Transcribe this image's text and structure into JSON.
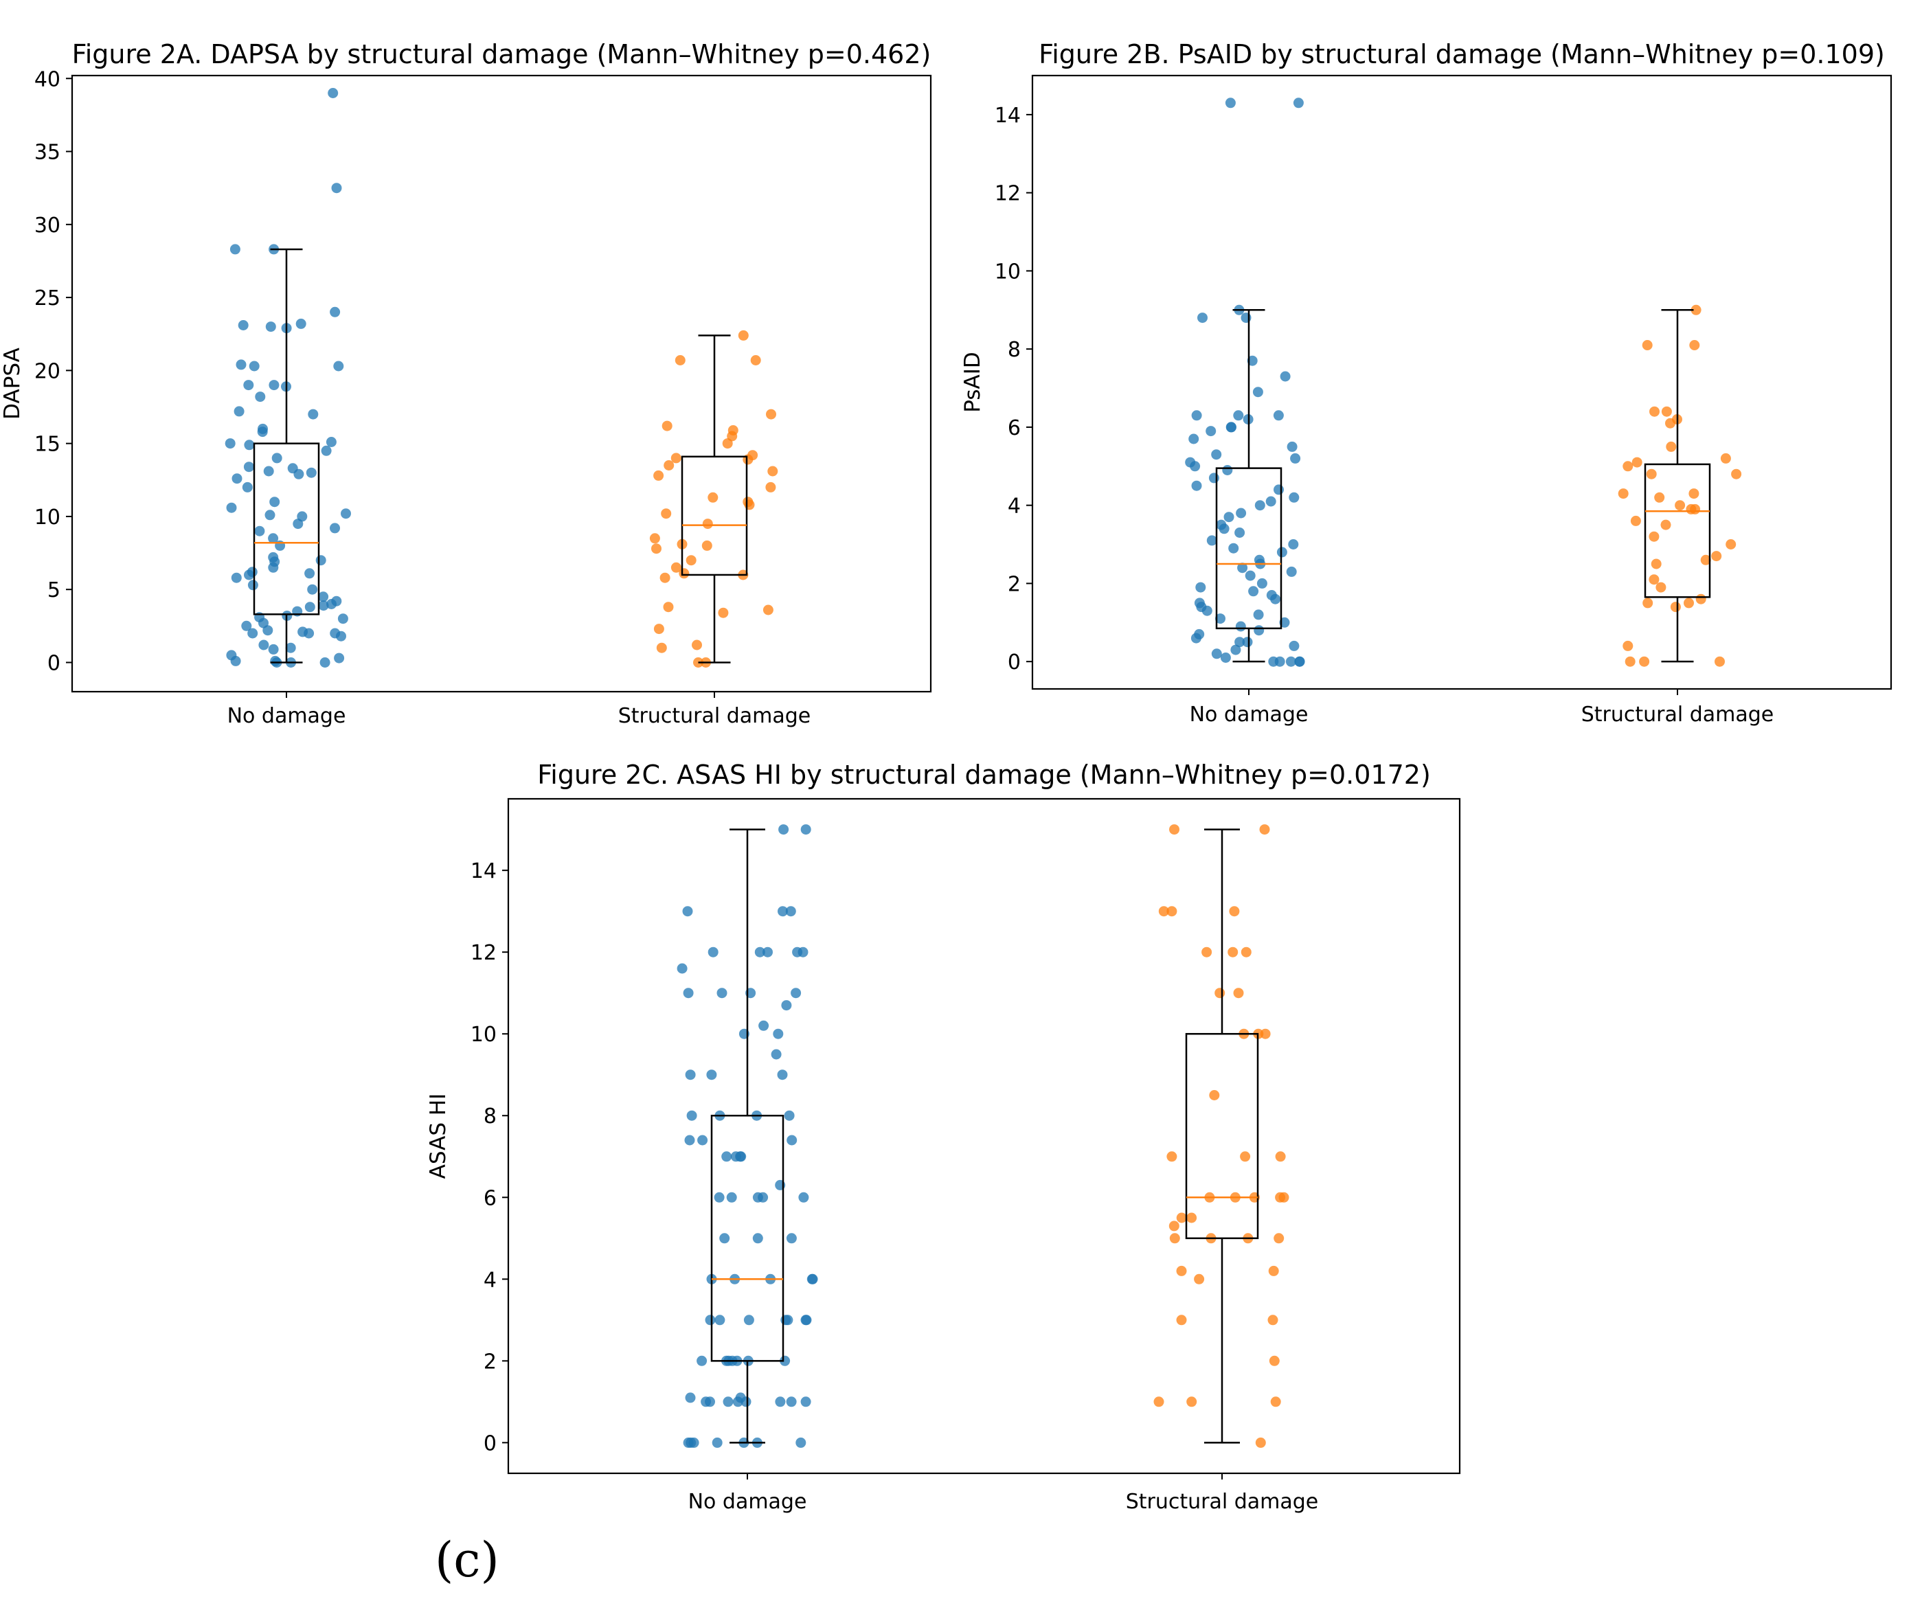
{
  "panel_label": "(c)",
  "colors": {
    "no_damage": "#1f77b4",
    "structural_damage": "#ff7f0e",
    "median": "#ff7f0e",
    "box": "#000000"
  },
  "chart_data": [
    {
      "id": "2A",
      "type": "box",
      "title": "Figure 2A. DAPSA by structural damage (Mann–Whitney p=0.462)",
      "ylabel": "DAPSA",
      "xlabel": "",
      "categories": [
        "No damage",
        "Structural damage"
      ],
      "ylim": [
        -2,
        40.2
      ],
      "yticks": [
        0,
        5,
        10,
        15,
        20,
        25,
        30,
        35,
        40
      ],
      "legend": "none",
      "grid": false,
      "boxes": [
        {
          "category": "No damage",
          "q1": 3.3,
          "median": 8.2,
          "q3": 15.0,
          "whisker_low": 0,
          "whisker_high": 28.3
        },
        {
          "category": "Structural damage",
          "q1": 6.0,
          "median": 9.4,
          "q3": 14.1,
          "whisker_low": 0,
          "whisker_high": 22.4
        }
      ],
      "points": [
        {
          "category": "No damage",
          "values": [
            39.0,
            32.5,
            28.3,
            28.3,
            24.0,
            23.1,
            23.0,
            22.9,
            23.2,
            20.3,
            20.4,
            20.3,
            19.0,
            19.0,
            18.9,
            18.2,
            17.2,
            17.0,
            16.0,
            15.8,
            15.0,
            15.1,
            14.9,
            14.5,
            14.0,
            13.4,
            13.3,
            13.1,
            13.0,
            12.9,
            12.6,
            12.0,
            11.0,
            10.6,
            10.2,
            10.1,
            10.0,
            9.5,
            9.2,
            9.0,
            8.5,
            8.0,
            7.2,
            7.0,
            6.9,
            6.5,
            6.2,
            6.0,
            6.1,
            5.8,
            5.3,
            5.0,
            4.5,
            4.2,
            4.0,
            3.9,
            3.8,
            3.5,
            3.2,
            3.0,
            3.1,
            2.7,
            2.5,
            2.2,
            2.1,
            2.0,
            2.0,
            2.0,
            1.8,
            1.2,
            1.0,
            0.9,
            0.5,
            0.3,
            0.1,
            0.0,
            0.0,
            0.0,
            0.1
          ]
        },
        {
          "category": "Structural damage",
          "values": [
            22.4,
            20.7,
            20.7,
            17.0,
            16.2,
            15.9,
            15.5,
            15.0,
            14.2,
            14.0,
            13.9,
            13.5,
            13.1,
            12.8,
            12.0,
            11.3,
            11.0,
            10.8,
            10.2,
            9.5,
            8.5,
            8.1,
            8.0,
            7.8,
            7.0,
            6.5,
            6.1,
            6.0,
            5.8,
            3.8,
            3.6,
            3.4,
            2.3,
            1.2,
            1.0,
            0.0,
            0.0
          ]
        }
      ]
    },
    {
      "id": "2B",
      "type": "box",
      "title": "Figure 2B. PsAID by structural damage (Mann–Whitney p=0.109)",
      "ylabel": "PsAID",
      "xlabel": "",
      "categories": [
        "No damage",
        "Structural damage"
      ],
      "ylim": [
        -0.7,
        15.0
      ],
      "yticks": [
        0,
        2,
        4,
        6,
        8,
        10,
        12,
        14
      ],
      "legend": "none",
      "grid": false,
      "boxes": [
        {
          "category": "No damage",
          "q1": 0.85,
          "median": 2.5,
          "q3": 4.95,
          "whisker_low": 0,
          "whisker_high": 9.0
        },
        {
          "category": "Structural damage",
          "q1": 1.65,
          "median": 3.85,
          "q3": 5.05,
          "whisker_low": 0,
          "whisker_high": 9.0
        }
      ],
      "points": [
        {
          "category": "No damage",
          "values": [
            14.3,
            14.3,
            9.0,
            8.8,
            8.8,
            7.7,
            7.3,
            6.9,
            6.3,
            6.3,
            6.3,
            6.2,
            6.0,
            6.0,
            5.9,
            5.7,
            5.5,
            5.3,
            5.2,
            5.1,
            5.0,
            4.9,
            4.7,
            4.5,
            4.4,
            4.2,
            4.1,
            4.0,
            3.8,
            3.7,
            3.5,
            3.4,
            3.3,
            3.1,
            3.0,
            2.9,
            2.8,
            2.6,
            2.5,
            2.4,
            2.3,
            2.2,
            2.0,
            1.9,
            1.8,
            1.7,
            1.6,
            1.5,
            1.4,
            1.3,
            1.2,
            1.1,
            1.0,
            0.9,
            0.8,
            0.7,
            0.6,
            0.5,
            0.5,
            0.4,
            0.3,
            0.2,
            0.1,
            0.0,
            0.0,
            0.0,
            0.0,
            0.0
          ]
        },
        {
          "category": "Structural damage",
          "values": [
            9.0,
            8.1,
            8.1,
            6.4,
            6.4,
            6.2,
            6.1,
            5.5,
            5.2,
            5.1,
            5.0,
            4.8,
            4.8,
            4.3,
            4.3,
            4.2,
            4.0,
            3.9,
            3.9,
            3.6,
            3.5,
            3.2,
            3.0,
            2.7,
            2.6,
            2.5,
            2.1,
            1.9,
            1.6,
            1.5,
            1.5,
            1.4,
            0.4,
            0.0,
            0.0,
            0.0
          ]
        }
      ]
    },
    {
      "id": "2C",
      "type": "box",
      "title": "Figure 2C. ASAS HI by structural damage (Mann–Whitney p=0.0172)",
      "ylabel": "ASAS HI",
      "xlabel": "",
      "categories": [
        "No damage",
        "Structural damage"
      ],
      "ylim": [
        -0.75,
        15.75
      ],
      "yticks": [
        0,
        2,
        4,
        6,
        8,
        10,
        12,
        14
      ],
      "legend": "none",
      "grid": false,
      "boxes": [
        {
          "category": "No damage",
          "q1": 2.0,
          "median": 4.0,
          "q3": 8.0,
          "whisker_low": 0,
          "whisker_high": 15.0
        },
        {
          "category": "Structural damage",
          "q1": 5.0,
          "median": 6.0,
          "q3": 10.0,
          "whisker_low": 0,
          "whisker_high": 15.0
        }
      ],
      "points": [
        {
          "category": "No damage",
          "values": [
            15,
            15,
            13,
            13,
            13,
            12,
            12,
            12,
            12,
            12,
            11.6,
            11,
            11,
            11,
            11,
            10.7,
            10.2,
            10,
            10,
            9.5,
            9,
            9,
            9,
            8,
            8,
            8,
            8,
            7.4,
            7.4,
            7.4,
            7,
            7,
            7,
            7,
            6.3,
            6,
            6,
            6,
            6,
            6,
            5,
            5,
            5,
            4,
            4,
            4,
            4,
            4,
            3,
            3,
            3,
            3,
            3,
            3,
            3,
            2,
            2,
            2,
            2,
            2,
            2,
            2,
            1.1,
            1.1,
            1,
            1,
            1,
            1,
            1,
            1,
            1,
            1,
            0,
            0,
            0,
            0,
            0,
            0,
            0
          ]
        },
        {
          "category": "Structural damage",
          "values": [
            15,
            15,
            13,
            13,
            13,
            12,
            12,
            12,
            11,
            11,
            10,
            10,
            10,
            8.5,
            7,
            7,
            7,
            6,
            6,
            6,
            6,
            6,
            5.5,
            5.5,
            5.3,
            5,
            5,
            5,
            5,
            4.2,
            4.2,
            4,
            3,
            3,
            2,
            1,
            1,
            1,
            0
          ]
        }
      ]
    }
  ]
}
